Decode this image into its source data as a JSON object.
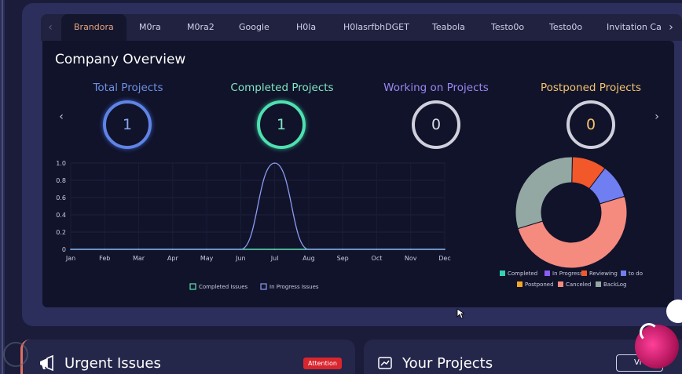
{
  "tabs": {
    "items": [
      "Brandora",
      "M0ra",
      "M0ra2",
      "Google",
      "H0la",
      "H0lasrfbhDGET",
      "Teabola",
      "Testo0o",
      "Testo0o",
      "Invitation Ca"
    ],
    "active": "Brandora"
  },
  "overview": {
    "title": "Company Overview",
    "stats": [
      {
        "label": "Total Projects",
        "value": "1",
        "color": "#6d8fe6"
      },
      {
        "label": "Completed Projects",
        "value": "1",
        "color": "#5fe3b8"
      },
      {
        "label": "Working on Projects",
        "value": "0",
        "color": "#8f7df0"
      },
      {
        "label": "Postponed Projects",
        "value": "0",
        "color": "#f3c36d"
      }
    ]
  },
  "chart_data": [
    {
      "type": "line",
      "x": [
        "Jan",
        "Feb",
        "Mar",
        "Apr",
        "May",
        "Jun",
        "Jul",
        "Aug",
        "Sep",
        "Oct",
        "Nov",
        "Dec"
      ],
      "ylim": [
        0,
        1.0
      ],
      "yticks": [
        "0",
        "0.2",
        "0.4",
        "0.6",
        "0.8",
        "1.0"
      ],
      "series": [
        {
          "name": "Completed Issues",
          "values": [
            0,
            0,
            0,
            0,
            0,
            0,
            0,
            0,
            0,
            0,
            0,
            0
          ],
          "color": "#5fe3b8"
        },
        {
          "name": "In Progress Issues",
          "values": [
            0,
            0,
            0,
            0,
            0,
            0,
            1,
            0,
            0,
            0,
            0,
            0
          ],
          "color": "#8b9cf2"
        }
      ]
    },
    {
      "type": "pie",
      "donut": true,
      "labels": [
        "Completed",
        "In Progress",
        "Reviewing",
        "to do",
        "Postponed",
        "Canceled",
        "BackLog"
      ],
      "colors": [
        "#34d3b0",
        "#8b5cf6",
        "#f3582a",
        "#6f7ef0",
        "#f5a623",
        "#f58a7e",
        "#93a8a3"
      ],
      "values": [
        0,
        0,
        1,
        1,
        0,
        5,
        3
      ]
    }
  ],
  "urgent": {
    "title": "Urgent Issues",
    "badge": "Attention"
  },
  "projects": {
    "title": "Your Projects",
    "button": "Vi"
  }
}
